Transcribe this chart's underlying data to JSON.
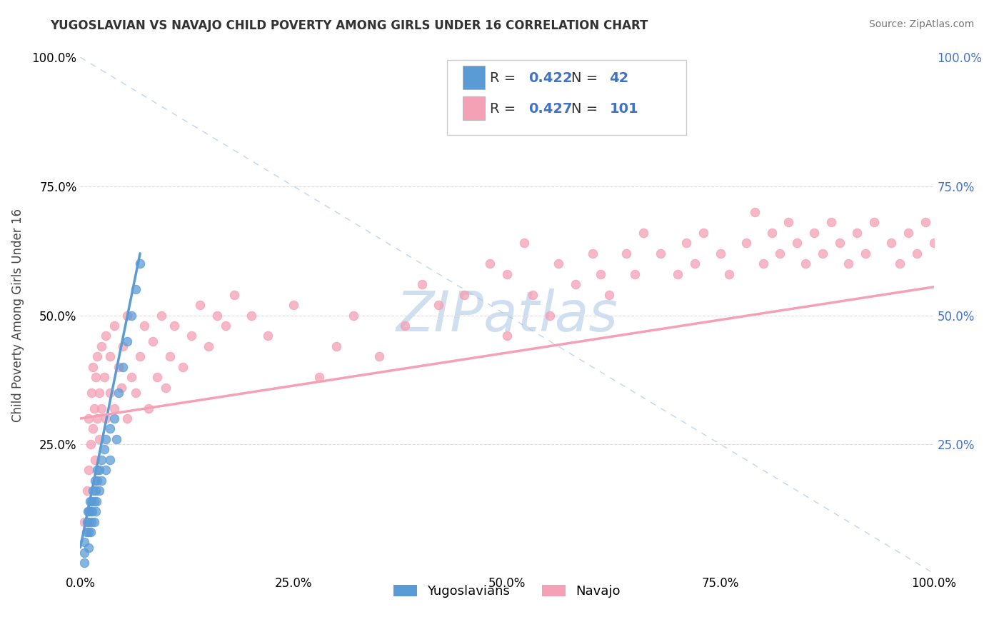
{
  "title": "YUGOSLAVIAN VS NAVAJO CHILD POVERTY AMONG GIRLS UNDER 16 CORRELATION CHART",
  "source": "Source: ZipAtlas.com",
  "ylabel": "Child Poverty Among Girls Under 16",
  "xlim": [
    0,
    1
  ],
  "ylim": [
    0,
    1
  ],
  "xticks": [
    0,
    0.25,
    0.5,
    0.75,
    1.0
  ],
  "yticks": [
    0,
    0.25,
    0.5,
    0.75,
    1.0
  ],
  "xticklabels": [
    "0.0%",
    "25.0%",
    "50.0%",
    "75.0%",
    "100.0%"
  ],
  "yticklabels": [
    "",
    "25.0%",
    "50.0%",
    "75.0%",
    "100.0%"
  ],
  "right_yticklabels": [
    "",
    "25.0%",
    "50.0%",
    "75.0%",
    "100.0%"
  ],
  "yugo_color": "#5b9bd5",
  "navajo_color": "#f4a0b5",
  "legend_color": "#4472c4",
  "yugo_R": "0.422",
  "yugo_N": "42",
  "navajo_R": "0.427",
  "navajo_N": "101",
  "watermark": "ZIPatlas",
  "watermark_color": "#d0dff0",
  "background_color": "#ffffff",
  "grid_color": "#dddddd",
  "yugo_scatter": [
    [
      0.005,
      0.02
    ],
    [
      0.005,
      0.04
    ],
    [
      0.005,
      0.06
    ],
    [
      0.007,
      0.08
    ],
    [
      0.008,
      0.1
    ],
    [
      0.009,
      0.12
    ],
    [
      0.01,
      0.05
    ],
    [
      0.01,
      0.08
    ],
    [
      0.01,
      0.1
    ],
    [
      0.01,
      0.12
    ],
    [
      0.011,
      0.14
    ],
    [
      0.012,
      0.08
    ],
    [
      0.012,
      0.12
    ],
    [
      0.013,
      0.1
    ],
    [
      0.013,
      0.14
    ],
    [
      0.014,
      0.12
    ],
    [
      0.015,
      0.16
    ],
    [
      0.016,
      0.1
    ],
    [
      0.016,
      0.14
    ],
    [
      0.017,
      0.18
    ],
    [
      0.018,
      0.12
    ],
    [
      0.018,
      0.16
    ],
    [
      0.019,
      0.14
    ],
    [
      0.02,
      0.18
    ],
    [
      0.02,
      0.2
    ],
    [
      0.022,
      0.16
    ],
    [
      0.022,
      0.2
    ],
    [
      0.025,
      0.22
    ],
    [
      0.025,
      0.18
    ],
    [
      0.028,
      0.24
    ],
    [
      0.03,
      0.2
    ],
    [
      0.03,
      0.26
    ],
    [
      0.035,
      0.28
    ],
    [
      0.035,
      0.22
    ],
    [
      0.04,
      0.3
    ],
    [
      0.042,
      0.26
    ],
    [
      0.045,
      0.35
    ],
    [
      0.05,
      0.4
    ],
    [
      0.055,
      0.45
    ],
    [
      0.06,
      0.5
    ],
    [
      0.065,
      0.55
    ],
    [
      0.07,
      0.6
    ]
  ],
  "navajo_scatter": [
    [
      0.005,
      0.1
    ],
    [
      0.008,
      0.16
    ],
    [
      0.01,
      0.2
    ],
    [
      0.01,
      0.3
    ],
    [
      0.012,
      0.25
    ],
    [
      0.013,
      0.35
    ],
    [
      0.015,
      0.28
    ],
    [
      0.015,
      0.4
    ],
    [
      0.016,
      0.32
    ],
    [
      0.017,
      0.22
    ],
    [
      0.018,
      0.38
    ],
    [
      0.02,
      0.3
    ],
    [
      0.02,
      0.42
    ],
    [
      0.022,
      0.35
    ],
    [
      0.022,
      0.26
    ],
    [
      0.025,
      0.32
    ],
    [
      0.025,
      0.44
    ],
    [
      0.028,
      0.38
    ],
    [
      0.03,
      0.3
    ],
    [
      0.03,
      0.46
    ],
    [
      0.035,
      0.35
    ],
    [
      0.035,
      0.42
    ],
    [
      0.04,
      0.32
    ],
    [
      0.04,
      0.48
    ],
    [
      0.045,
      0.4
    ],
    [
      0.048,
      0.36
    ],
    [
      0.05,
      0.44
    ],
    [
      0.055,
      0.3
    ],
    [
      0.055,
      0.5
    ],
    [
      0.06,
      0.38
    ],
    [
      0.065,
      0.35
    ],
    [
      0.07,
      0.42
    ],
    [
      0.075,
      0.48
    ],
    [
      0.08,
      0.32
    ],
    [
      0.085,
      0.45
    ],
    [
      0.09,
      0.38
    ],
    [
      0.095,
      0.5
    ],
    [
      0.1,
      0.36
    ],
    [
      0.105,
      0.42
    ],
    [
      0.11,
      0.48
    ],
    [
      0.12,
      0.4
    ],
    [
      0.13,
      0.46
    ],
    [
      0.14,
      0.52
    ],
    [
      0.15,
      0.44
    ],
    [
      0.16,
      0.5
    ],
    [
      0.17,
      0.48
    ],
    [
      0.18,
      0.54
    ],
    [
      0.2,
      0.5
    ],
    [
      0.22,
      0.46
    ],
    [
      0.25,
      0.52
    ],
    [
      0.28,
      0.38
    ],
    [
      0.3,
      0.44
    ],
    [
      0.32,
      0.5
    ],
    [
      0.35,
      0.42
    ],
    [
      0.38,
      0.48
    ],
    [
      0.4,
      0.56
    ],
    [
      0.42,
      0.52
    ],
    [
      0.45,
      0.54
    ],
    [
      0.48,
      0.6
    ],
    [
      0.5,
      0.46
    ],
    [
      0.5,
      0.58
    ],
    [
      0.52,
      0.64
    ],
    [
      0.53,
      0.54
    ],
    [
      0.55,
      0.5
    ],
    [
      0.56,
      0.6
    ],
    [
      0.58,
      0.56
    ],
    [
      0.6,
      0.62
    ],
    [
      0.61,
      0.58
    ],
    [
      0.62,
      0.54
    ],
    [
      0.64,
      0.62
    ],
    [
      0.65,
      0.58
    ],
    [
      0.66,
      0.66
    ],
    [
      0.68,
      0.62
    ],
    [
      0.7,
      0.58
    ],
    [
      0.71,
      0.64
    ],
    [
      0.72,
      0.6
    ],
    [
      0.73,
      0.66
    ],
    [
      0.75,
      0.62
    ],
    [
      0.76,
      0.58
    ],
    [
      0.78,
      0.64
    ],
    [
      0.79,
      0.7
    ],
    [
      0.8,
      0.6
    ],
    [
      0.81,
      0.66
    ],
    [
      0.82,
      0.62
    ],
    [
      0.83,
      0.68
    ],
    [
      0.84,
      0.64
    ],
    [
      0.85,
      0.6
    ],
    [
      0.86,
      0.66
    ],
    [
      0.87,
      0.62
    ],
    [
      0.88,
      0.68
    ],
    [
      0.89,
      0.64
    ],
    [
      0.9,
      0.6
    ],
    [
      0.91,
      0.66
    ],
    [
      0.92,
      0.62
    ],
    [
      0.93,
      0.68
    ],
    [
      0.95,
      0.64
    ],
    [
      0.96,
      0.6
    ],
    [
      0.97,
      0.66
    ],
    [
      0.98,
      0.62
    ],
    [
      0.99,
      0.68
    ],
    [
      1.0,
      0.64
    ]
  ],
  "yugo_line": [
    [
      0.0,
      0.05
    ],
    [
      0.07,
      0.62
    ]
  ],
  "navajo_line": [
    [
      0.0,
      0.3
    ],
    [
      1.0,
      0.555
    ]
  ],
  "diag_line": [
    [
      0.0,
      1.0
    ],
    [
      0.0,
      1.0
    ]
  ]
}
